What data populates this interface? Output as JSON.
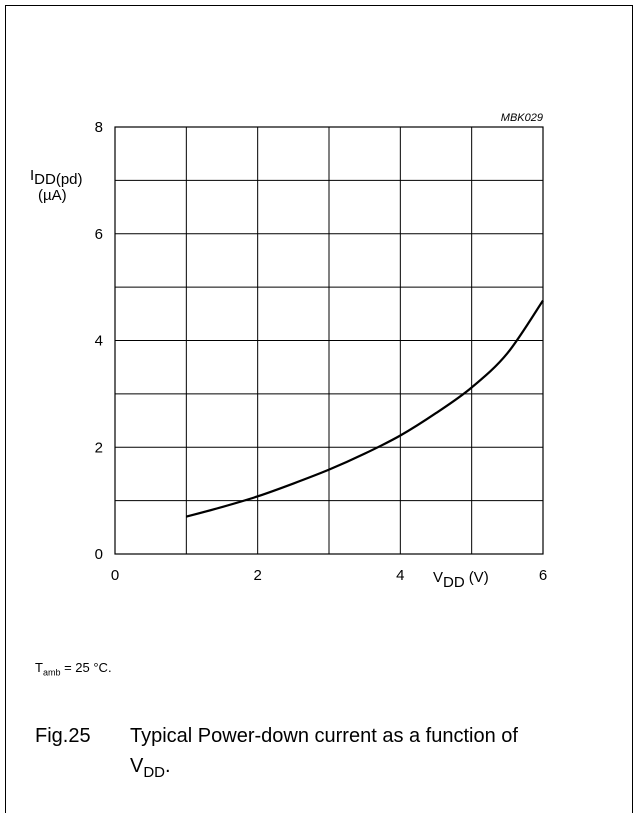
{
  "chart_data": {
    "type": "line",
    "code": "MBK029",
    "x_axis": {
      "label_main": "V",
      "label_sub": "DD",
      "label_unit": "(V)",
      "range": [
        0,
        6
      ],
      "ticks": [
        "0",
        "2",
        "4",
        "6"
      ]
    },
    "y_axis": {
      "label_main": "I",
      "label_sub": "DD(pd)",
      "label_unit": "(µA)",
      "range": [
        0,
        8
      ],
      "ticks": [
        "0",
        "2",
        "4",
        "6",
        "8"
      ]
    },
    "grid": true,
    "series": [
      {
        "x": [
          1.0,
          1.5,
          2.0,
          2.5,
          3.0,
          3.5,
          4.0,
          4.5,
          5.0,
          5.5,
          6.0
        ],
        "y": [
          0.7,
          0.88,
          1.08,
          1.32,
          1.58,
          1.88,
          2.22,
          2.64,
          3.12,
          3.76,
          4.75
        ]
      }
    ]
  },
  "note": {
    "prefix": "T",
    "sub": "amb",
    "value": " = 25 °C."
  },
  "caption": {
    "number": "Fig.25",
    "text": "Typical Power-down current as a function of",
    "line2_main": "V",
    "line2_sub": "DD",
    "line2_end": "."
  }
}
